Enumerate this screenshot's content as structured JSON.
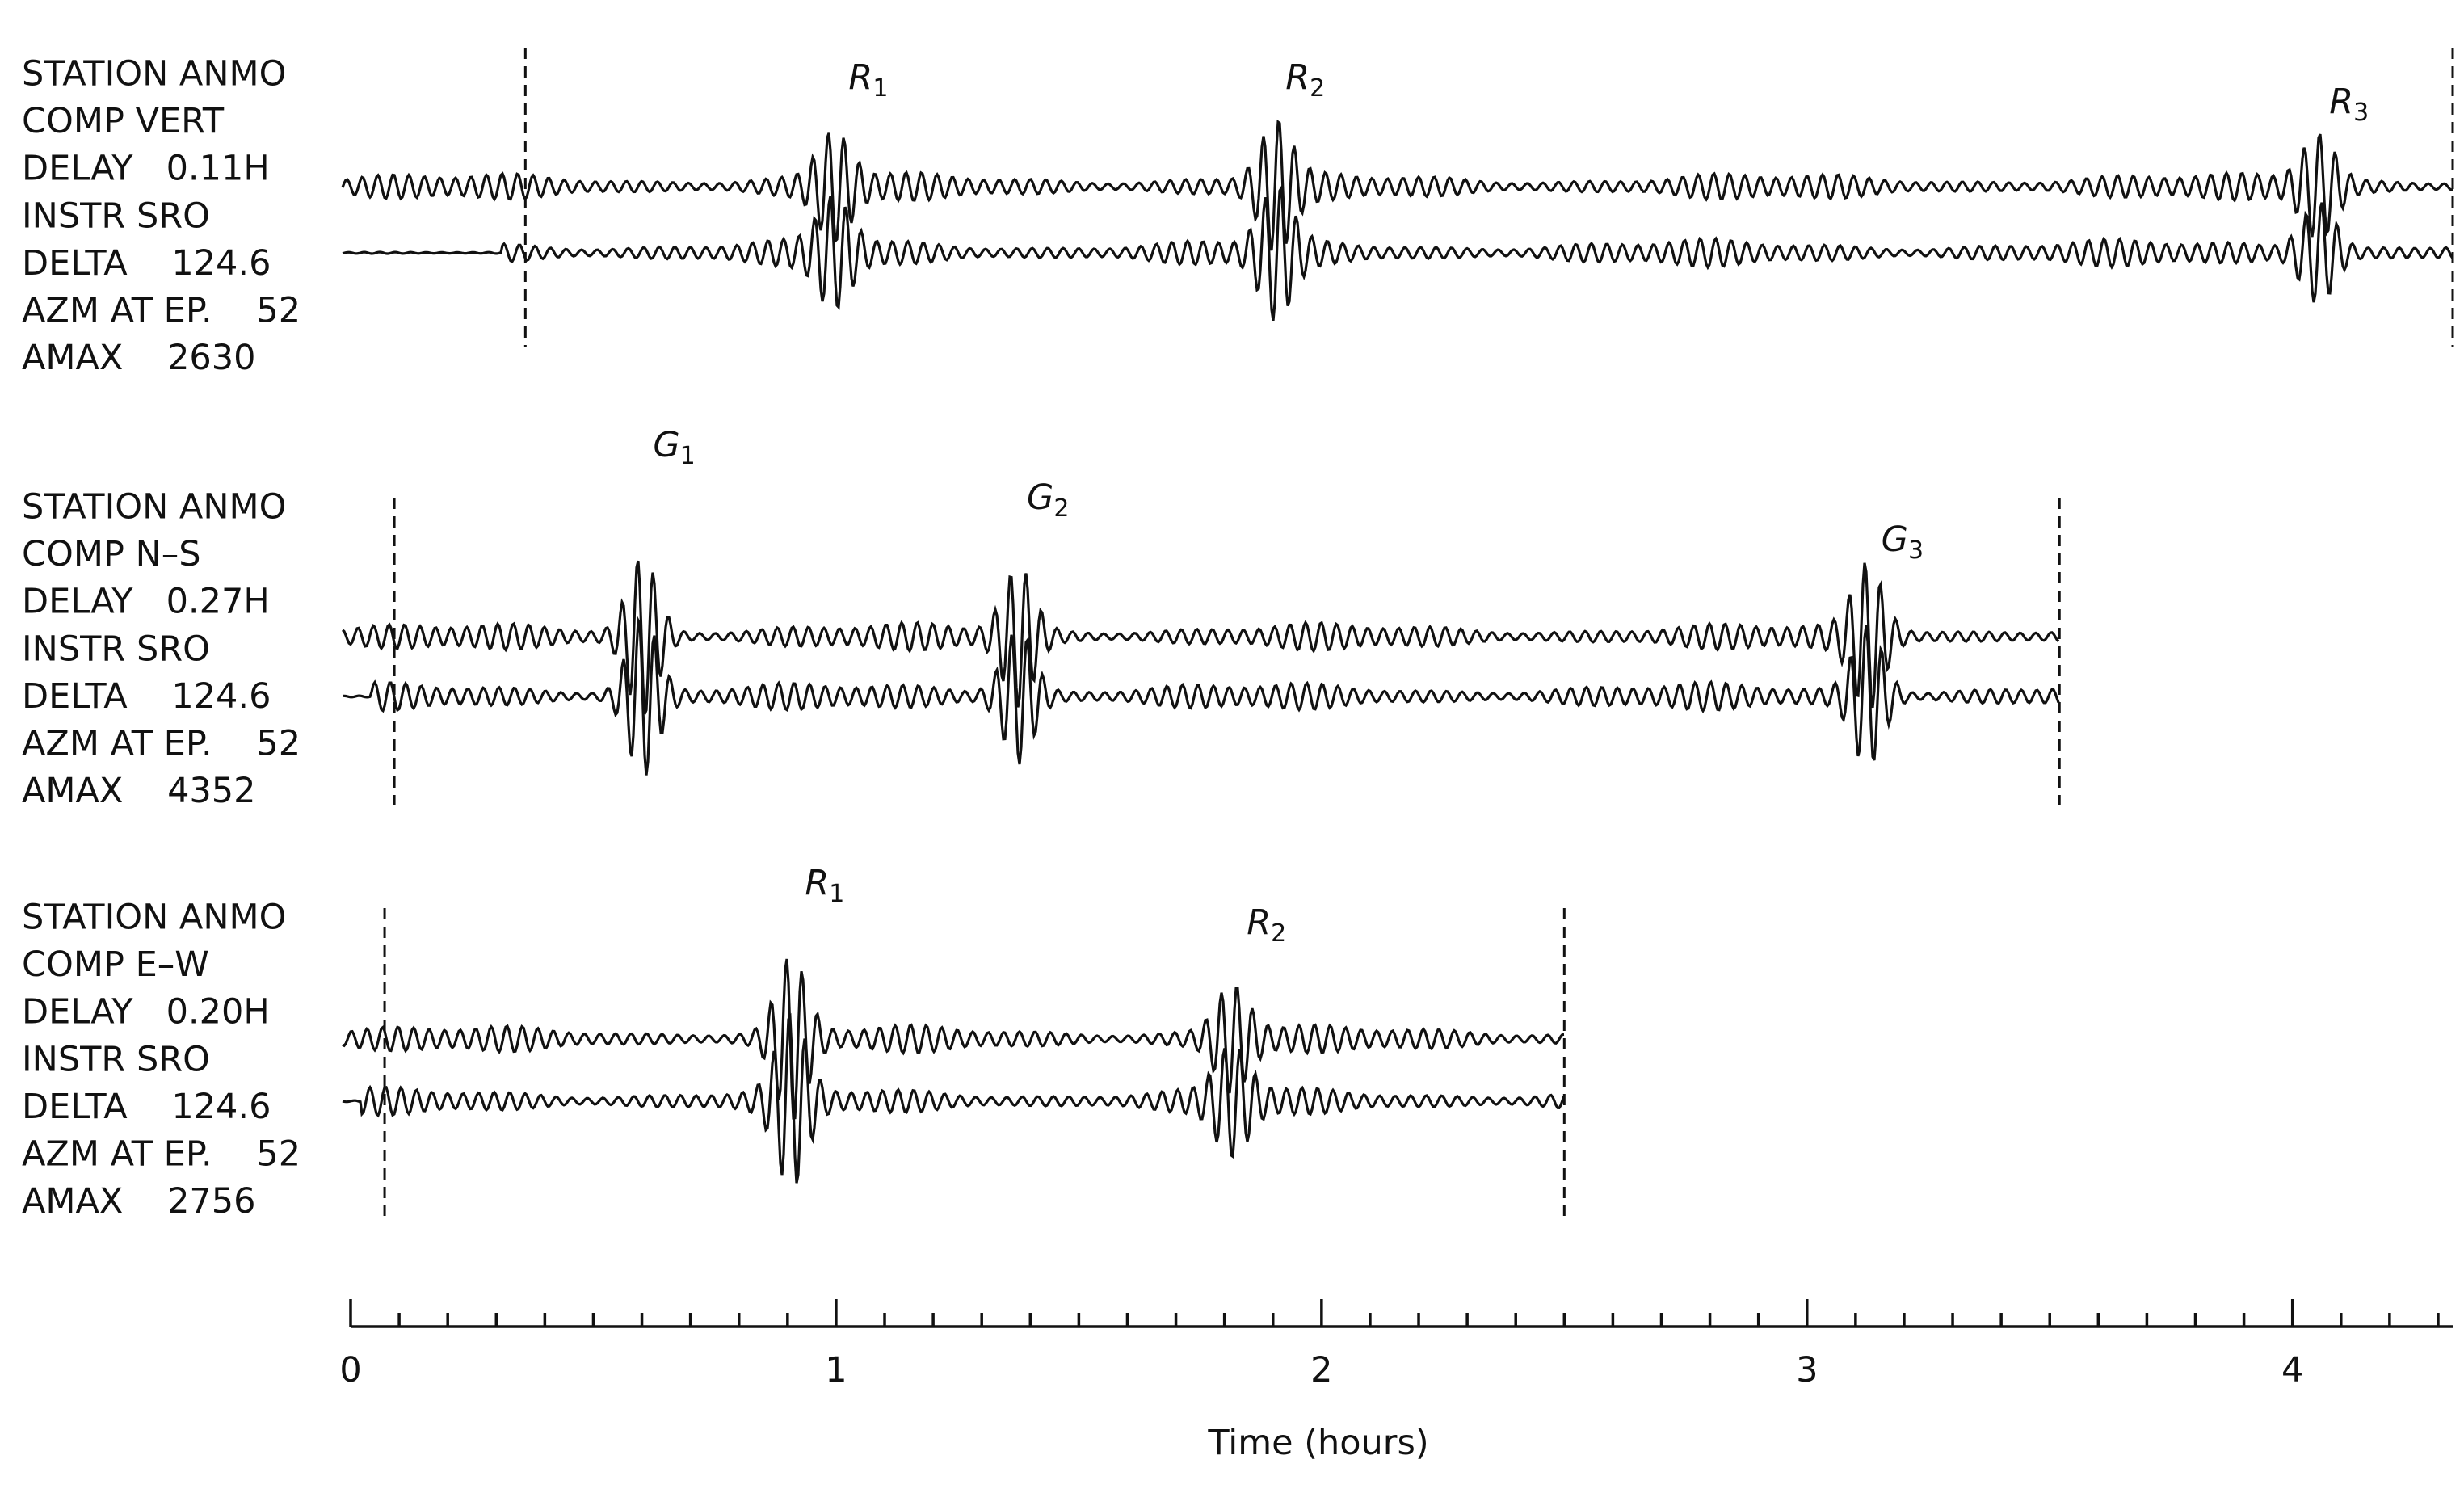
{
  "panels": [
    {
      "lines": [
        "STATION ANMO",
        "COMP VERT",
        "DELAY   0.11H",
        "INSTR SRO",
        "DELTA    124.6",
        "AZM AT EP.    52",
        "AMAX    2630"
      ],
      "window": [
        0.36,
        4.33
      ],
      "phases": [
        {
          "label": "R",
          "sub": "1",
          "time": 1.0
        },
        {
          "label": "R",
          "sub": "2",
          "time": 1.9
        },
        {
          "label": "R",
          "sub": "3",
          "time": 4.05
        }
      ]
    },
    {
      "lines": [
        "STATION ANMO",
        "COMP N–S",
        "DELAY   0.27H",
        "INSTR SRO",
        "DELTA    124.6",
        "AZM AT EP.    52",
        "AMAX    4352"
      ],
      "window": [
        0.09,
        3.52
      ],
      "phases": [
        {
          "label": "G",
          "sub": "1",
          "time": 0.6
        },
        {
          "label": "G",
          "sub": "2",
          "time": 1.37
        },
        {
          "label": "G",
          "sub": "3",
          "time": 3.13
        }
      ]
    },
    {
      "lines": [
        "STATION ANMO",
        "COMP E–W",
        "DELAY   0.20H",
        "INSTR SRO",
        "DELTA    124.6",
        "AZM AT EP.    52",
        "AMAX    2756"
      ],
      "window": [
        0.07,
        2.5
      ],
      "phases": [
        {
          "label": "R",
          "sub": "1",
          "time": 0.91
        },
        {
          "label": "R",
          "sub": "2",
          "time": 1.82
        }
      ]
    }
  ],
  "time_axis": {
    "label": "Time (hours)",
    "xlim": [
      0,
      4.33
    ],
    "xticks": [
      0,
      1,
      2,
      3,
      4
    ],
    "minor_ticks_per_interval": 10
  }
}
